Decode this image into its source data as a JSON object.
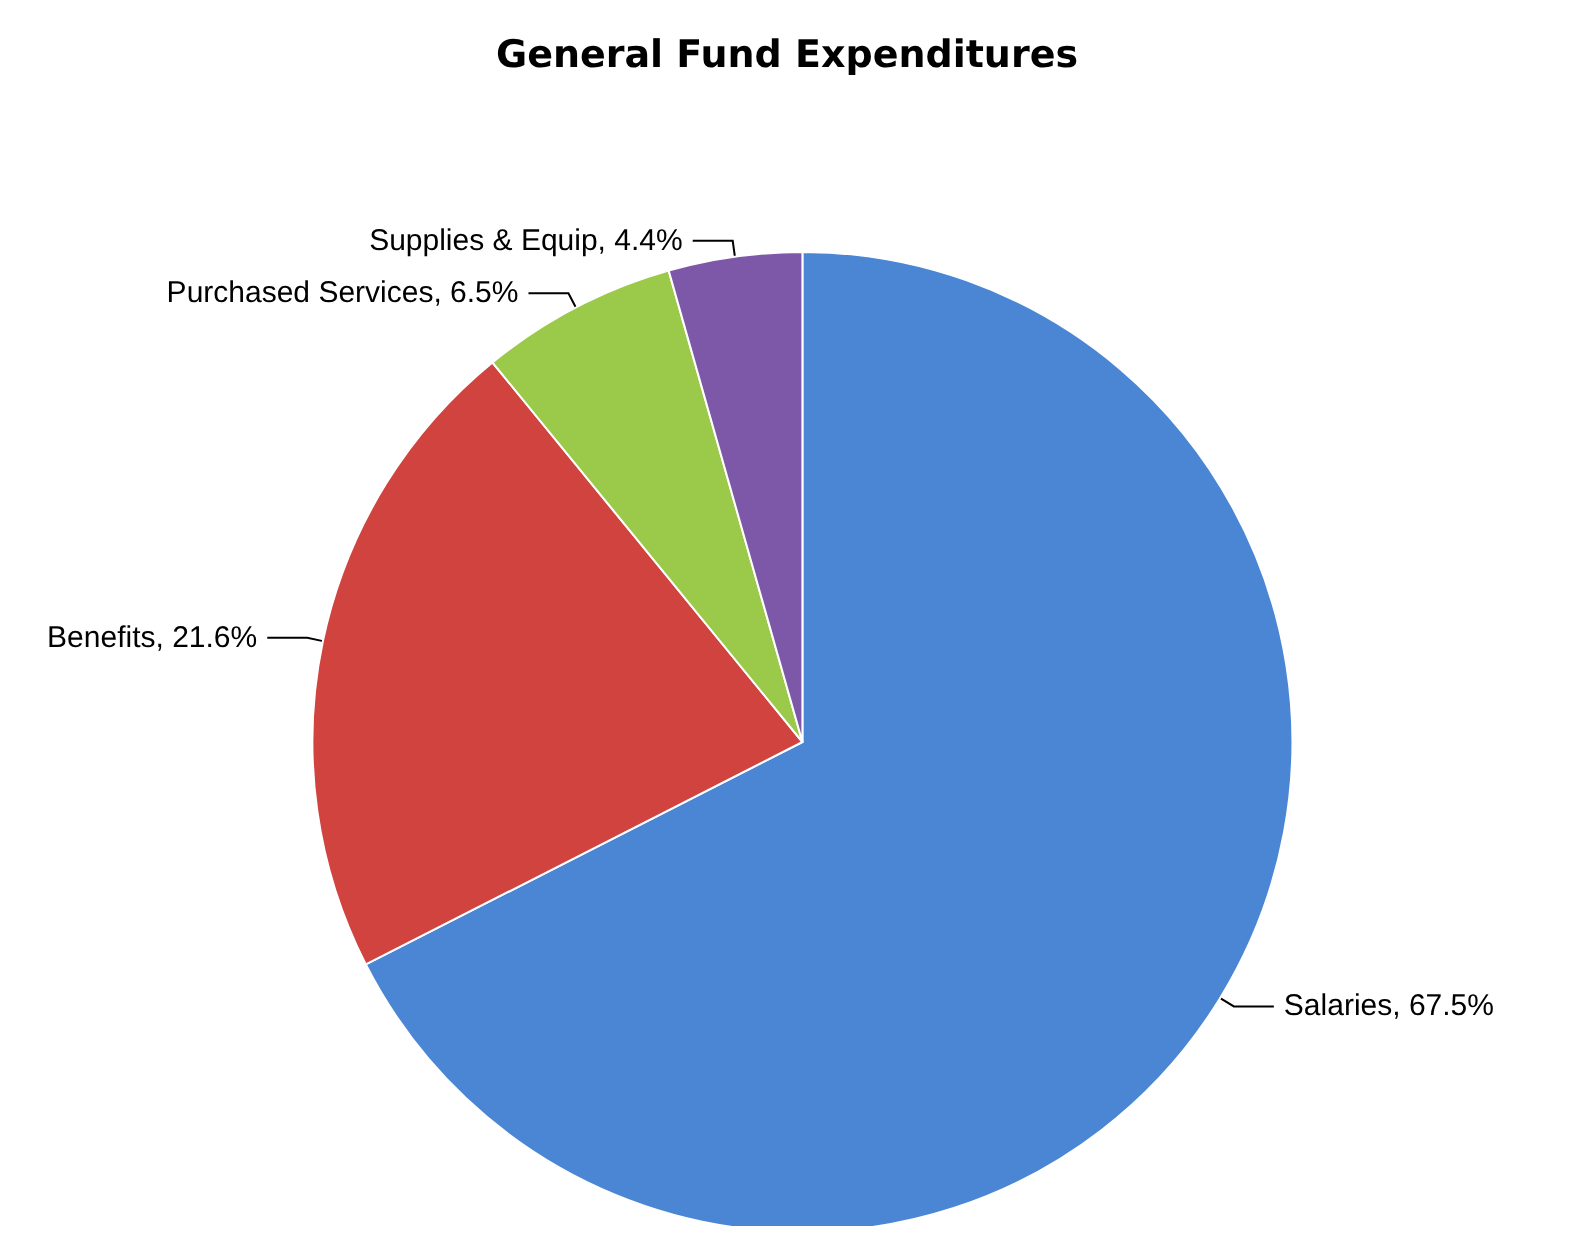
{
  "chart_data": {
    "type": "pie",
    "title": "General Fund Expenditures",
    "categories": [
      "Salaries",
      "Benefits",
      "Purchased Services",
      "Supplies & Equip"
    ],
    "values": [
      67.5,
      21.6,
      6.5,
      4.4
    ],
    "colors": [
      "#4a86d4",
      "#d0433f",
      "#9bc94a",
      "#7e58a8"
    ],
    "value_labels": [
      "67.5%",
      "21.6%",
      "6.5%",
      "4.4%"
    ],
    "legend": false
  }
}
